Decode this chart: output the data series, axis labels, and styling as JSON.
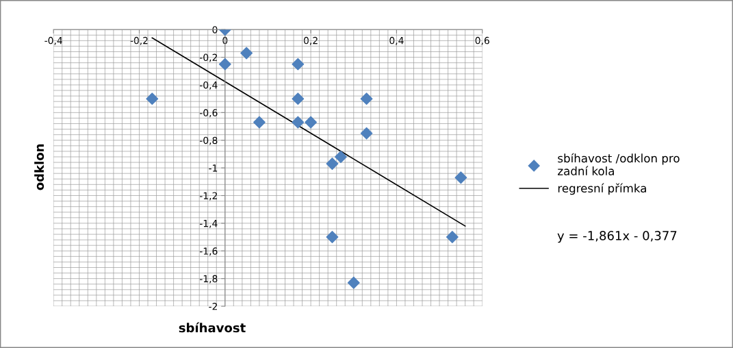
{
  "chart_data": {
    "type": "scatter",
    "xlabel": "sbíhavost",
    "ylabel": "odklon",
    "series": [
      {
        "name": "sbíhavost /odklon pro zadní kola",
        "color": "#4f81bd",
        "marker": "diamond",
        "x": [
          0,
          0.05,
          0,
          0.17,
          -0.17,
          0.17,
          0.33,
          0.08,
          0.17,
          0.2,
          0.33,
          0.25,
          0.27,
          0.55,
          0.25,
          0.53,
          0.3
        ],
        "values": [
          0,
          -0.17,
          -0.25,
          -0.25,
          -0.5,
          -0.5,
          -0.5,
          -0.67,
          -0.67,
          -0.67,
          -0.75,
          -0.97,
          -0.92,
          -1.07,
          -1.5,
          -1.5,
          -1.83
        ]
      },
      {
        "name": "regresní přímka",
        "type": "line",
        "color": "#000000",
        "x": [
          -0.17,
          0.56
        ],
        "values": [
          -0.06,
          -1.42
        ]
      }
    ],
    "xlim": [
      -0.4,
      0.6
    ],
    "ylim": [
      -2,
      0
    ],
    "xticks": [
      {
        "value": -0.4,
        "label": "-0,4"
      },
      {
        "value": -0.2,
        "label": "-0,2"
      },
      0,
      {
        "value": 0.2,
        "label": "0,2"
      },
      {
        "value": 0.4,
        "label": "0,4"
      },
      {
        "value": 0.6,
        "label": "0,6"
      }
    ],
    "yticks": [
      {
        "value": -2,
        "label": "-2"
      },
      {
        "value": -1.8,
        "label": "-1,8"
      },
      {
        "value": -1.6,
        "label": "-1,6"
      },
      {
        "value": -1.4,
        "label": "-1,4"
      },
      {
        "value": -1.2,
        "label": "-1,2"
      },
      {
        "value": -1,
        "label": "-1"
      },
      {
        "value": -0.8,
        "label": "-0,8"
      },
      {
        "value": -0.6,
        "label": "-0,6"
      },
      {
        "value": -0.4,
        "label": "-0,4"
      },
      {
        "value": -0.2,
        "label": "-0,2"
      },
      0
    ],
    "grid": true,
    "legend": "right",
    "annotations": [
      "y = -1,861x - 0,377"
    ]
  }
}
